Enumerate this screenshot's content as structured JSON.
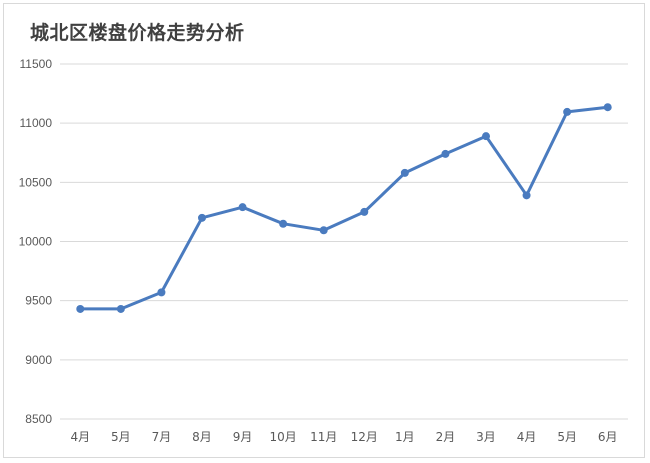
{
  "chart_data": {
    "type": "line",
    "title": "城北区楼盘价格走势分析",
    "xlabel": "",
    "ylabel": "",
    "categories": [
      "4月",
      "5月",
      "7月",
      "8月",
      "9月",
      "10月",
      "11月",
      "12月",
      "1月",
      "2月",
      "3月",
      "4月",
      "5月",
      "6月"
    ],
    "series": [
      {
        "values": [
          9430,
          9430,
          9570,
          10200,
          10290,
          10150,
          10095,
          10250,
          10580,
          10740,
          10890,
          10390,
          11095,
          11135
        ]
      }
    ],
    "ylim": [
      8500,
      11500
    ],
    "yticks": [
      8500,
      9000,
      9500,
      10000,
      10500,
      11000,
      11500
    ],
    "grid": true,
    "legend": "none",
    "line_color": "#4a7bbf",
    "grid_color": "#d9d9d9"
  }
}
